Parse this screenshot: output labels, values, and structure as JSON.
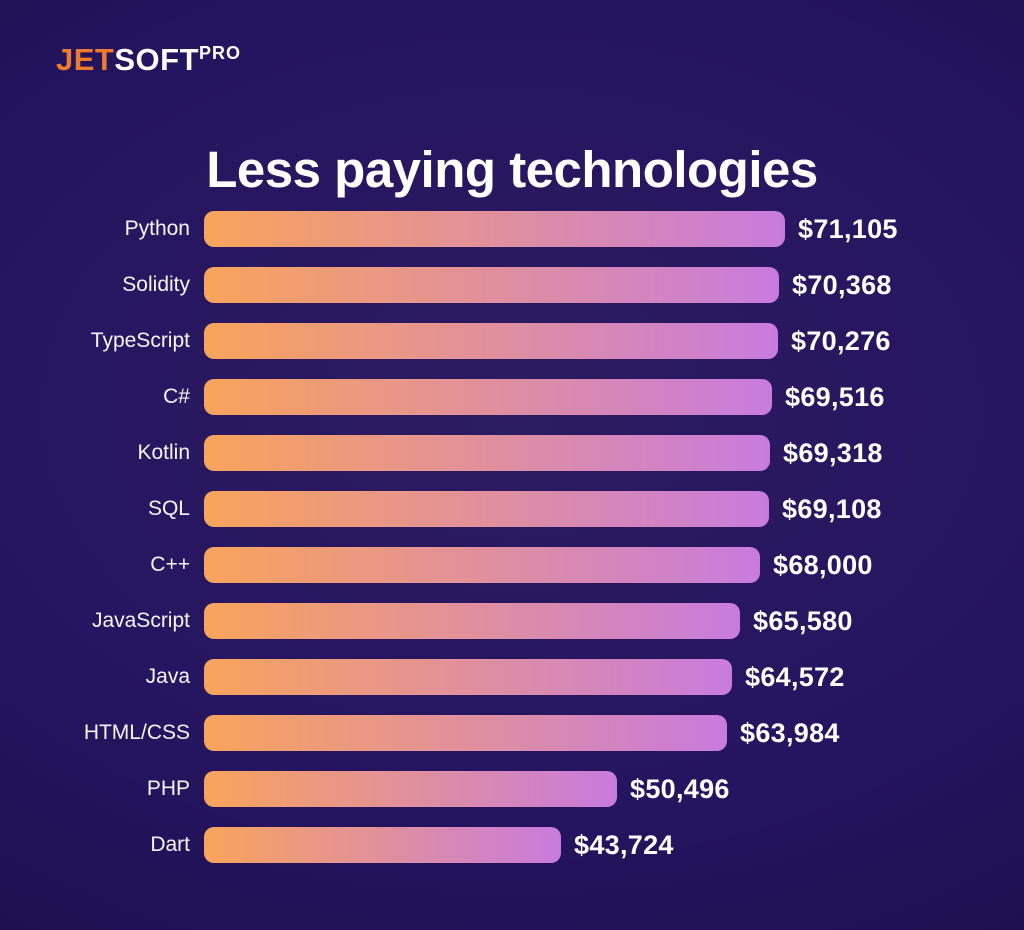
{
  "logo": {
    "part1": "JET",
    "part2": "SOFT",
    "part3": "PRO"
  },
  "title": "Less paying technologies",
  "chart_data": {
    "type": "bar",
    "orientation": "horizontal",
    "title": "Less paying technologies",
    "sorted": "descending",
    "value_axis_hidden": true,
    "grid": false,
    "legend": false,
    "categories": [
      "Python",
      "Solidity",
      "TypeScript",
      "C#",
      "Kotlin",
      "SQL",
      "C++",
      "JavaScript",
      "Java",
      "HTML/CSS",
      "PHP",
      "Dart"
    ],
    "values": [
      71105,
      70368,
      70276,
      69516,
      69318,
      69108,
      68000,
      65580,
      64572,
      63984,
      50496,
      43724
    ],
    "display_values": [
      "$71,105",
      "$70,368",
      "$70,276",
      "$69,516",
      "$69,318",
      "$69,108",
      "$68,000",
      "$65,580",
      "$64,572",
      "$63,984",
      "$50,496",
      "$43,724"
    ],
    "xlim": [
      0,
      71105
    ],
    "colors": {
      "bar_gradient_start": "#f9a45b",
      "bar_gradient_end": "#c87bde",
      "background_center": "#2d1c61",
      "background_edge": "#190d43",
      "logo_accent": "#ed7b2f",
      "text": "#ffffff"
    }
  }
}
